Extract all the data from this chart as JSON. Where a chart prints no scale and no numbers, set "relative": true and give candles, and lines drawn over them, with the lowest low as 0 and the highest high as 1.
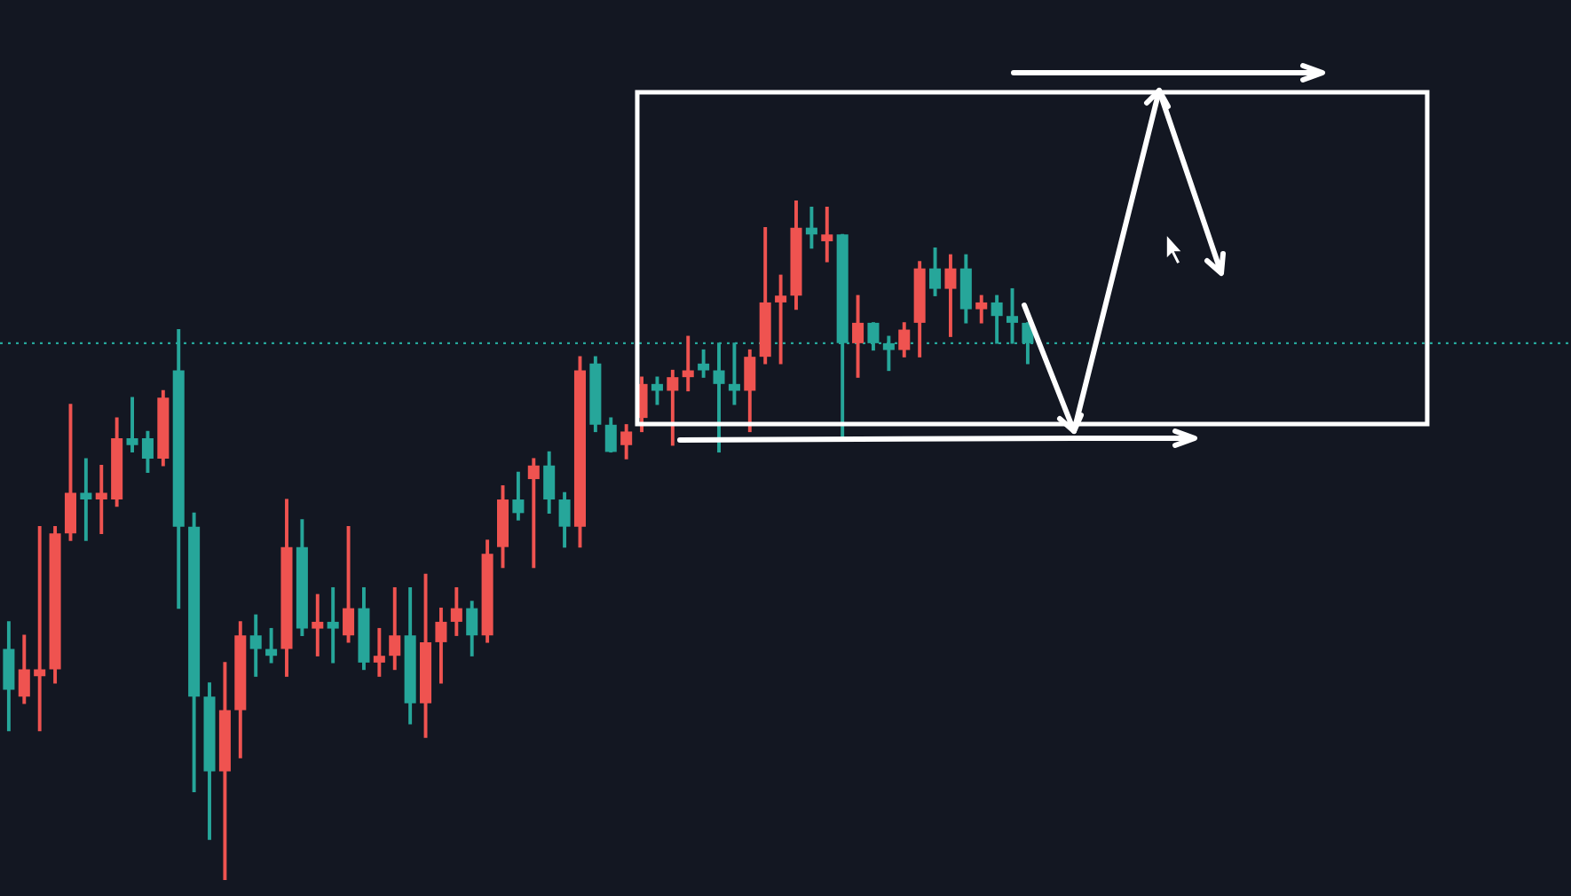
{
  "chart_data": {
    "type": "candlestick",
    "relative": true,
    "categories": [
      null,
      null,
      null,
      null,
      null,
      null,
      null,
      null,
      null,
      null,
      null,
      null,
      null,
      null,
      null,
      null,
      null,
      null,
      null,
      null,
      null,
      null,
      null,
      null,
      null,
      null,
      null,
      null,
      null,
      null,
      null,
      null,
      null,
      null,
      null,
      null,
      null,
      null,
      null,
      null,
      null,
      null,
      null,
      null,
      null,
      null,
      null,
      null,
      null,
      null,
      null,
      null,
      null,
      null,
      null,
      null,
      null,
      null,
      null,
      null,
      null,
      null,
      null,
      null,
      null,
      null,
      null,
      null,
      null,
      null,
      null,
      null,
      null,
      null,
      null,
      null,
      null,
      null,
      null,
      null,
      null,
      null,
      null,
      null,
      null,
      null,
      null,
      null,
      null,
      null,
      null,
      null,
      null,
      null,
      null,
      null,
      null,
      null,
      null,
      null,
      null
    ],
    "ohlc": [
      [
        0.34,
        0.38,
        0.22,
        0.28
      ],
      [
        0.27,
        0.36,
        0.26,
        0.31
      ],
      [
        0.3,
        0.52,
        0.22,
        0.31
      ],
      [
        0.31,
        0.52,
        0.29,
        0.51
      ],
      [
        0.51,
        0.7,
        0.5,
        0.57
      ],
      [
        0.57,
        0.62,
        0.5,
        0.56
      ],
      [
        0.56,
        0.61,
        0.51,
        0.57
      ],
      [
        0.56,
        0.68,
        0.55,
        0.65
      ],
      [
        0.65,
        0.71,
        0.63,
        0.64
      ],
      [
        0.65,
        0.66,
        0.6,
        0.62
      ],
      [
        0.62,
        0.72,
        0.61,
        0.71
      ],
      [
        0.75,
        0.81,
        0.4,
        0.52
      ],
      [
        0.52,
        0.54,
        0.13,
        0.27
      ],
      [
        0.27,
        0.29,
        0.06,
        0.16
      ],
      [
        0.16,
        0.32,
        0,
        0.25
      ],
      [
        0.25,
        0.38,
        0.18,
        0.36
      ],
      [
        0.36,
        0.39,
        0.3,
        0.34
      ],
      [
        0.34,
        0.37,
        0.32,
        0.33
      ],
      [
        0.34,
        0.56,
        0.3,
        0.49
      ],
      [
        0.49,
        0.53,
        0.36,
        0.37
      ],
      [
        0.37,
        0.42,
        0.33,
        0.38
      ],
      [
        0.38,
        0.43,
        0.32,
        0.37
      ],
      [
        0.36,
        0.52,
        0.35,
        0.4
      ],
      [
        0.4,
        0.43,
        0.31,
        0.32
      ],
      [
        0.32,
        0.37,
        0.3,
        0.33
      ],
      [
        0.33,
        0.43,
        0.31,
        0.36
      ],
      [
        0.36,
        0.43,
        0.23,
        0.26
      ],
      [
        0.26,
        0.45,
        0.21,
        0.35
      ],
      [
        0.35,
        0.4,
        0.29,
        0.38
      ],
      [
        0.38,
        0.43,
        0.36,
        0.4
      ],
      [
        0.4,
        0.41,
        0.33,
        0.36
      ],
      [
        0.36,
        0.5,
        0.35,
        0.48
      ],
      [
        0.49,
        0.58,
        0.46,
        0.56
      ],
      [
        0.56,
        0.6,
        0.53,
        0.54
      ],
      [
        0.59,
        0.62,
        0.46,
        0.61
      ],
      [
        0.61,
        0.63,
        0.54,
        0.56
      ],
      [
        0.56,
        0.57,
        0.49,
        0.52
      ],
      [
        0.52,
        0.77,
        0.49,
        0.75
      ],
      [
        0.76,
        0.77,
        0.66,
        0.67
      ],
      [
        0.67,
        0.68,
        0.63,
        0.63
      ],
      [
        0.64,
        0.67,
        0.62,
        0.66
      ],
      [
        0.68,
        0.74,
        0.66,
        0.73
      ],
      [
        0.73,
        0.74,
        0.7,
        0.72
      ],
      [
        0.72,
        0.75,
        0.64,
        0.74
      ],
      [
        0.74,
        0.8,
        0.72,
        0.75
      ],
      [
        0.76,
        0.78,
        0.74,
        0.75
      ],
      [
        0.75,
        0.79,
        0.63,
        0.73
      ],
      [
        0.73,
        0.79,
        0.7,
        0.72
      ],
      [
        0.72,
        0.78,
        0.66,
        0.77
      ],
      [
        0.77,
        0.96,
        0.76,
        0.85
      ],
      [
        0.85,
        0.89,
        0.76,
        0.86
      ],
      [
        0.86,
        1,
        0.84,
        0.96
      ],
      [
        0.96,
        0.99,
        0.93,
        0.95
      ],
      [
        0.94,
        0.99,
        0.91,
        0.95
      ],
      [
        0.95,
        0.95,
        0.65,
        0.79
      ],
      [
        0.79,
        0.86,
        0.74,
        0.82
      ],
      [
        0.82,
        0.82,
        0.78,
        0.79
      ],
      [
        0.79,
        0.8,
        0.75,
        0.78
      ],
      [
        0.78,
        0.82,
        0.77,
        0.81
      ],
      [
        0.82,
        0.91,
        0.77,
        0.9
      ],
      [
        0.9,
        0.93,
        0.86,
        0.87
      ],
      [
        0.87,
        0.92,
        0.8,
        0.9
      ],
      [
        0.9,
        0.92,
        0.82,
        0.84
      ],
      [
        0.84,
        0.86,
        0.82,
        0.85
      ],
      [
        0.85,
        0.86,
        0.79,
        0.83
      ],
      [
        0.83,
        0.87,
        0.79,
        0.82
      ],
      [
        0.82,
        0.82,
        0.76,
        0.79
      ],
      null,
      null,
      null,
      null,
      null,
      null,
      null,
      null,
      null,
      null,
      null,
      null,
      null,
      null,
      null,
      null,
      null,
      null,
      null,
      null,
      null,
      null,
      null,
      null,
      null,
      null,
      null,
      null,
      null,
      null,
      null,
      null,
      null,
      null
    ],
    "colors": [
      "#26a69a",
      "#ef5350",
      "#ef5350",
      "#ef5350",
      "#ef5350",
      "#26a69a",
      "#ef5350",
      "#ef5350",
      "#26a69a",
      "#26a69a",
      "#ef5350",
      "#26a69a",
      "#26a69a",
      "#26a69a",
      "#ef5350",
      "#ef5350",
      "#26a69a",
      "#26a69a",
      "#ef5350",
      "#26a69a",
      "#ef5350",
      "#26a69a",
      "#ef5350",
      "#26a69a",
      "#ef5350",
      "#ef5350",
      "#26a69a",
      "#ef5350",
      "#ef5350",
      "#ef5350",
      "#26a69a",
      "#ef5350",
      "#ef5350",
      "#26a69a",
      "#ef5350",
      "#26a69a",
      "#26a69a",
      "#ef5350",
      "#26a69a",
      "#26a69a",
      "#ef5350",
      "#ef5350",
      "#26a69a",
      "#ef5350",
      "#ef5350",
      "#26a69a",
      "#26a69a",
      "#26a69a",
      "#ef5350",
      "#ef5350",
      "#ef5350",
      "#ef5350",
      "#26a69a",
      "#ef5350",
      "#26a69a",
      "#ef5350",
      "#26a69a",
      "#26a69a",
      "#ef5350",
      "#ef5350",
      "#26a69a",
      "#ef5350",
      "#26a69a",
      "#ef5350",
      "#26a69a",
      "#26a69a",
      "#26a69a",
      null,
      null,
      null,
      null,
      null,
      null,
      null,
      null,
      null,
      null,
      null,
      null,
      null,
      null,
      null,
      null,
      null,
      null,
      null,
      null,
      null,
      null,
      null,
      null,
      null,
      null,
      null,
      null,
      null,
      null,
      null,
      null,
      null,
      null
    ],
    "ref_lines": [
      {
        "axis": "y",
        "value": 0.79,
        "color": "#26a69a",
        "line_style": "dotted"
      }
    ]
  }
}
